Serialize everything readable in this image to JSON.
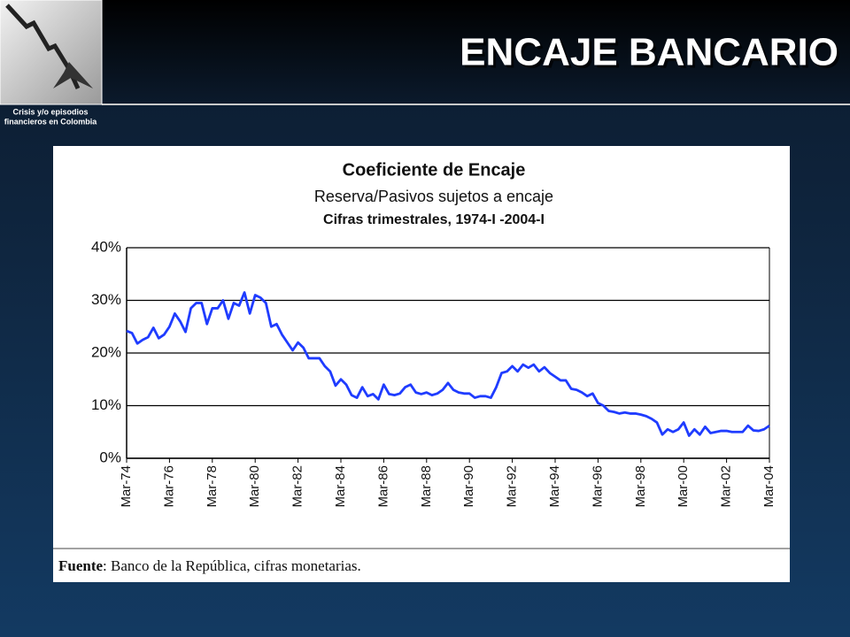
{
  "slide": {
    "title": "ENCAJE BANCARIO",
    "logo_caption": [
      "Crisis y/o episodios",
      "financieros en Colombia"
    ]
  },
  "chart_data": {
    "type": "line",
    "title": "Coeficiente de Encaje",
    "subtitle": "Reserva/Pasivos sujetos a encaje",
    "subtitle2": "Cifras trimestrales, 1974-I -2004-I",
    "note": {
      "label": "Fuente",
      "text": ": Banco de la República, cifras monetarias."
    },
    "color": "#1f3cff",
    "grid": true,
    "ylim": [
      0,
      40
    ],
    "yticks": [
      {
        "value": 0,
        "label": "0%"
      },
      {
        "value": 10,
        "label": "10%"
      },
      {
        "value": 20,
        "label": "20%"
      },
      {
        "value": 30,
        "label": "30%"
      },
      {
        "value": 40,
        "label": "40%"
      }
    ],
    "categories": [
      "Mar-74",
      null,
      null,
      null,
      null,
      null,
      null,
      null,
      "Mar-76",
      null,
      null,
      null,
      null,
      null,
      null,
      null,
      "Mar-78",
      null,
      null,
      null,
      null,
      null,
      null,
      null,
      "Mar-80",
      null,
      null,
      null,
      null,
      null,
      null,
      null,
      "Mar-82",
      null,
      null,
      null,
      null,
      null,
      null,
      null,
      "Mar-84",
      null,
      null,
      null,
      null,
      null,
      null,
      null,
      "Mar-86",
      null,
      null,
      null,
      null,
      null,
      null,
      null,
      "Mar-88",
      null,
      null,
      null,
      null,
      null,
      null,
      null,
      "Mar-90",
      null,
      null,
      null,
      null,
      null,
      null,
      null,
      "Mar-92",
      null,
      null,
      null,
      null,
      null,
      null,
      null,
      "Mar-94",
      null,
      null,
      null,
      null,
      null,
      null,
      null,
      "Mar-96",
      null,
      null,
      null,
      null,
      null,
      null,
      null,
      "Mar-98",
      null,
      null,
      null,
      null,
      null,
      null,
      null,
      "Mar-00",
      null,
      null,
      null,
      null,
      null,
      null,
      null,
      "Mar-02",
      null,
      null,
      null,
      null,
      null,
      null,
      null,
      "Mar-04"
    ],
    "values": [
      24.2,
      23.8,
      21.8,
      22.5,
      23,
      24.8,
      22.8,
      23.5,
      25,
      27.5,
      26,
      24,
      28.5,
      29.5,
      29.5,
      25.5,
      28.5,
      28.5,
      30,
      26.5,
      29.5,
      29,
      31.5,
      27.5,
      31,
      30.5,
      29.5,
      25,
      25.5,
      23.5,
      22,
      20.5,
      22,
      21,
      19,
      19,
      19,
      17.5,
      16.5,
      13.8,
      15,
      14,
      12,
      11.5,
      13.5,
      11.8,
      12.2,
      11.2,
      14,
      12.2,
      12,
      12.3,
      13.5,
      14,
      12.5,
      12.2,
      12.5,
      12,
      12.3,
      13,
      14.3,
      13,
      12.5,
      12.3,
      12.3,
      11.5,
      11.8,
      11.8,
      11.5,
      13.5,
      16.2,
      16.5,
      17.5,
      16.5,
      17.8,
      17.2,
      17.8,
      16.5,
      17.3,
      16.2,
      15.5,
      14.8,
      14.8,
      13.2,
      13,
      12.5,
      11.8,
      12.3,
      10.5,
      10,
      9,
      8.8,
      8.5,
      8.7,
      8.5,
      8.5,
      8.3,
      8,
      7.5,
      6.8,
      4.5,
      5.5,
      5,
      5.5,
      6.8,
      4.3,
      5.5,
      4.5,
      6,
      4.8,
      5,
      5.2,
      5.2,
      5,
      5,
      5,
      6.2,
      5.3,
      5.2,
      5.5,
      6.2
    ]
  }
}
